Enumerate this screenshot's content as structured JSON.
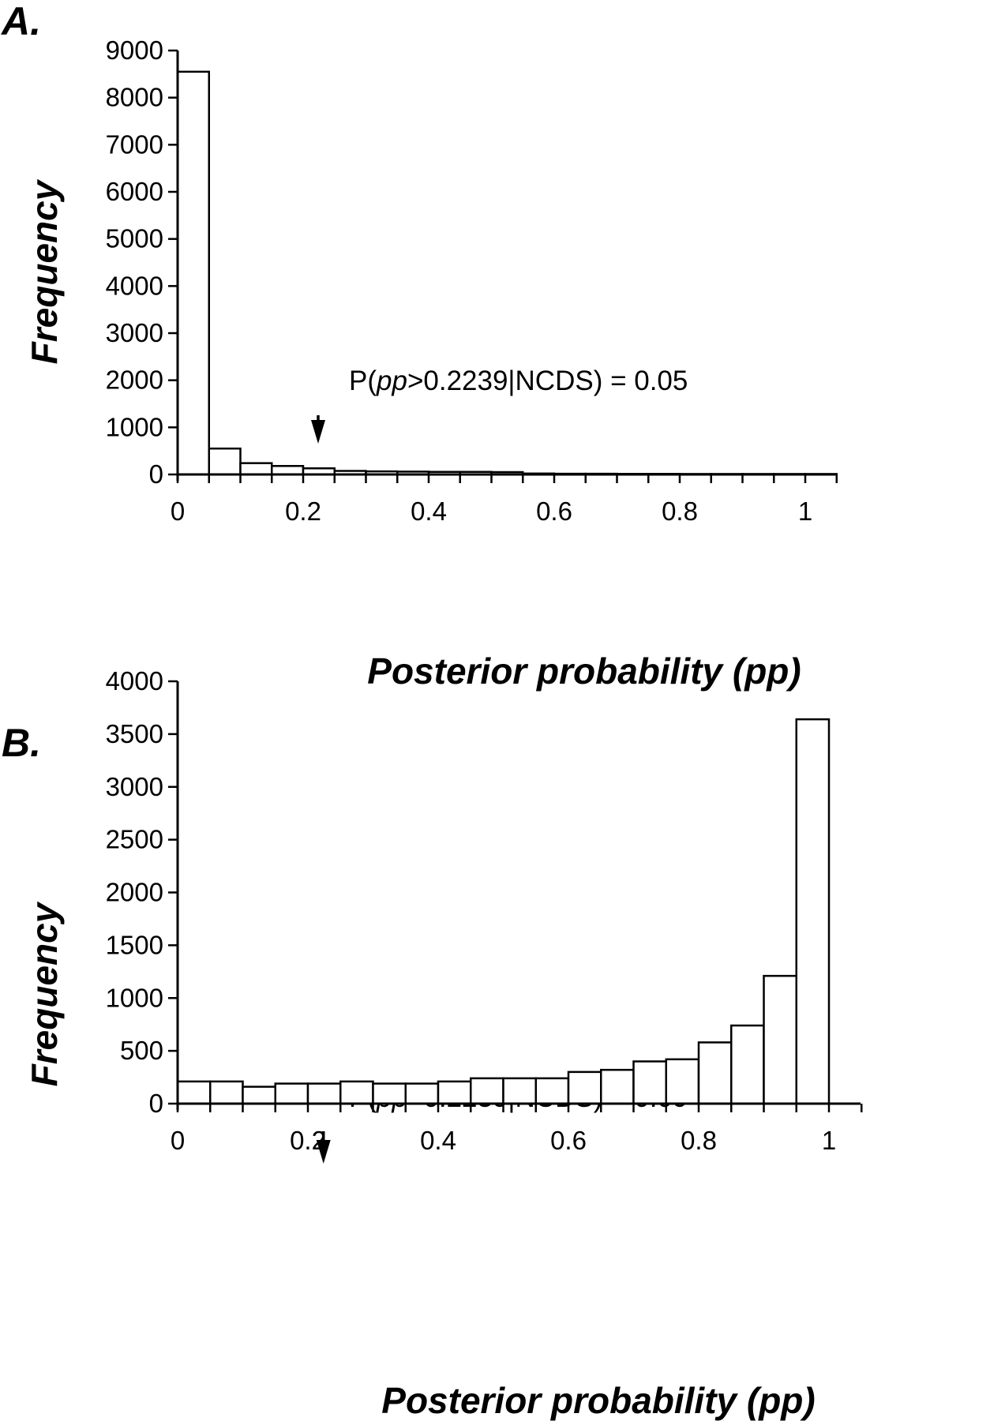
{
  "chart_data": [
    {
      "panel": "A.",
      "type": "bar",
      "xlabel": "Posterior probability (pp)",
      "ylabel": "Frequency",
      "bin_width": 0.05,
      "bin_starts": [
        0,
        0.05,
        0.1,
        0.15,
        0.2,
        0.25,
        0.3,
        0.35,
        0.4,
        0.45,
        0.5,
        0.55,
        0.6,
        0.65,
        0.7,
        0.75,
        0.8,
        0.85,
        0.9,
        0.95,
        1.0
      ],
      "values": [
        8550,
        550,
        240,
        180,
        130,
        75,
        65,
        60,
        55,
        55,
        50,
        20,
        15,
        15,
        12,
        12,
        10,
        10,
        10,
        10,
        10
      ],
      "xlim": [
        0,
        1.05
      ],
      "ylim": [
        0,
        9000
      ],
      "yticks": [
        0,
        1000,
        2000,
        3000,
        4000,
        5000,
        6000,
        7000,
        8000,
        9000
      ],
      "xticks": [
        0,
        0.2,
        0.4,
        0.6,
        0.8,
        1
      ],
      "xtick_labels": [
        "0",
        "0.2",
        "0.4",
        "0.6",
        "0.8",
        "1"
      ],
      "annotation": {
        "prefix": "P(",
        "italic": "pp",
        "suffix": ">0.2239|NCDS) = 0.05",
        "x": 0.2239
      }
    },
    {
      "panel": "B.",
      "type": "bar",
      "xlabel": "Posterior probability (pp)",
      "ylabel": "Frequency",
      "bin_width": 0.05,
      "bin_starts": [
        0,
        0.05,
        0.1,
        0.15,
        0.2,
        0.25,
        0.3,
        0.35,
        0.4,
        0.45,
        0.5,
        0.55,
        0.6,
        0.65,
        0.7,
        0.75,
        0.8,
        0.85,
        0.9,
        0.95
      ],
      "values": [
        210,
        210,
        160,
        190,
        190,
        210,
        190,
        190,
        210,
        240,
        240,
        240,
        300,
        320,
        400,
        420,
        580,
        740,
        1210,
        3640
      ],
      "xlim": [
        0,
        1.05
      ],
      "ylim": [
        0,
        4000
      ],
      "yticks": [
        0,
        500,
        1000,
        1500,
        2000,
        2500,
        3000,
        3500,
        4000
      ],
      "xticks": [
        0,
        0.2,
        0.4,
        0.6,
        0.8,
        1
      ],
      "xtick_labels": [
        "0",
        "0.2",
        "0.4",
        "0.6",
        "0.8",
        "1"
      ],
      "annotation": {
        "prefix": "P(",
        "italic": "pp",
        "suffix": "<0.2239|NCDS) = 0.09",
        "x": 0.2239
      }
    }
  ]
}
